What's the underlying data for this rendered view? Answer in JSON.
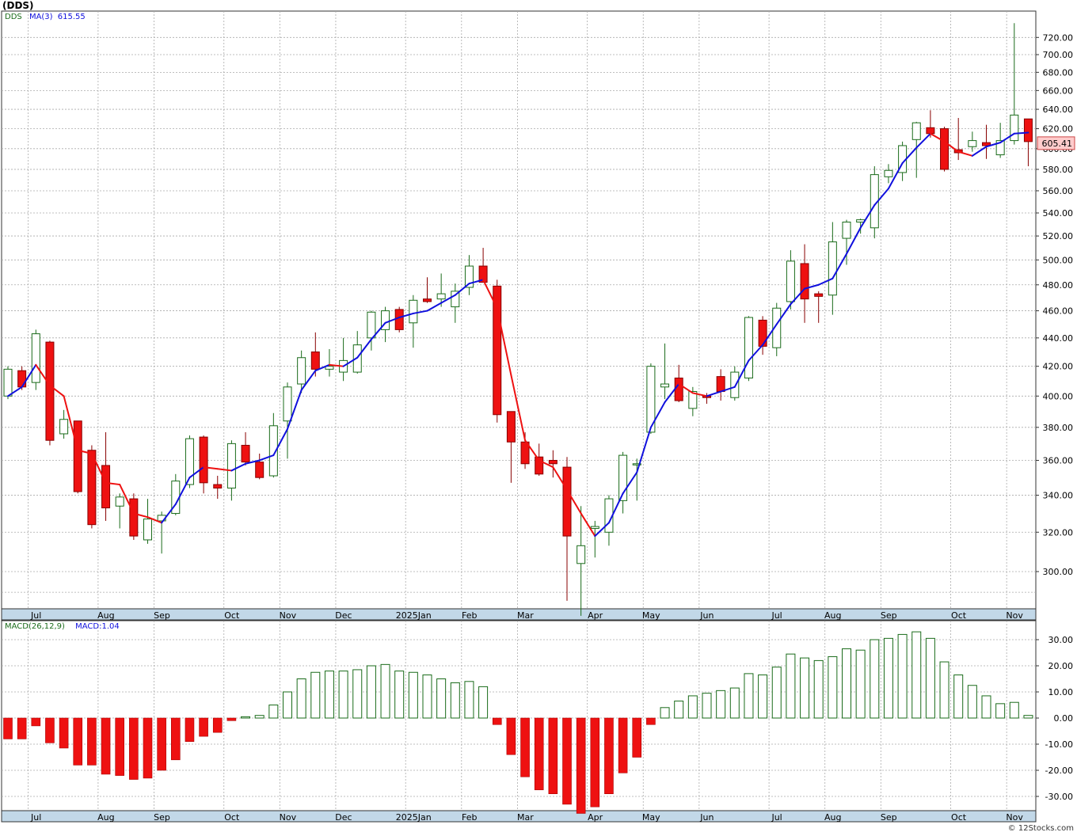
{
  "title": "(DDS)",
  "footer": "© 12Stocks.com",
  "colors": {
    "up_body": "#ffffff",
    "up_border": "#1a6b1a",
    "down_body": "#ee1111",
    "down_border": "#880000",
    "ma_up": "#1010dd",
    "ma_down": "#ee1111",
    "grid": "#aaaaaa",
    "axis_strip": "#c2d8e8",
    "macd_pos_border": "#1a6b1a",
    "macd_neg": "#ee1111",
    "price_tag_bg": "#ffcccc"
  },
  "price_legend": {
    "symbol": "DDS",
    "ma_label": "MA(3)",
    "ma_value": "615.55"
  },
  "macd_legend": {
    "label": "MACD(26,12,9)",
    "value_label": "MACD:1.04"
  },
  "price_tag": "605.41",
  "chart_data": [
    {
      "type": "candlestick",
      "frequency": "weekly",
      "y_ticks": [
        "300.00",
        "320.00",
        "340.00",
        "360.00",
        "380.00",
        "400.00",
        "420.00",
        "440.00",
        "460.00",
        "480.00",
        "500.00",
        "520.00",
        "540.00",
        "560.00",
        "580.00",
        "600.00",
        "620.00",
        "640.00",
        "660.00",
        "680.00",
        "700.00",
        "720.00"
      ],
      "y_tick_values": [
        300,
        320,
        340,
        360,
        380,
        400,
        420,
        440,
        460,
        480,
        500,
        520,
        540,
        560,
        580,
        600,
        620,
        640,
        660,
        680,
        700,
        720
      ],
      "y_scale": "log",
      "y_range": [
        280,
        740
      ],
      "grid": true,
      "months": [
        {
          "label": "Jul",
          "index": 1
        },
        {
          "label": "Aug",
          "index": 6
        },
        {
          "label": "Sep",
          "index": 10
        },
        {
          "label": "Oct",
          "index": 15
        },
        {
          "label": "Nov",
          "index": 19
        },
        {
          "label": "Dec",
          "index": 23
        },
        {
          "label": "2025Jan",
          "index": 28
        },
        {
          "label": "Feb",
          "index": 32
        },
        {
          "label": "Mar",
          "index": 36
        },
        {
          "label": "Apr",
          "index": 41
        },
        {
          "label": "May",
          "index": 45
        },
        {
          "label": "Jun",
          "index": 49
        },
        {
          "label": "Jul",
          "index": 54
        },
        {
          "label": "Aug",
          "index": 58
        },
        {
          "label": "Sep",
          "index": 62
        },
        {
          "label": "Oct",
          "index": 67
        },
        {
          "label": "Nov",
          "index": 71
        }
      ],
      "candles": [
        {
          "o": 400,
          "h": 420,
          "l": 398,
          "c": 418
        },
        {
          "o": 417,
          "h": 420,
          "l": 404,
          "c": 406
        },
        {
          "o": 409,
          "h": 446,
          "l": 404,
          "c": 443
        },
        {
          "o": 437,
          "h": 438,
          "l": 369,
          "c": 372
        },
        {
          "o": 376,
          "h": 391,
          "l": 373,
          "c": 385
        },
        {
          "o": 384,
          "h": 384,
          "l": 341,
          "c": 342
        },
        {
          "o": 366,
          "h": 369,
          "l": 322,
          "c": 324
        },
        {
          "o": 357,
          "h": 377,
          "l": 326,
          "c": 333
        },
        {
          "o": 334,
          "h": 341,
          "l": 322,
          "c": 339
        },
        {
          "o": 338,
          "h": 341,
          "l": 316,
          "c": 318
        },
        {
          "o": 316,
          "h": 338,
          "l": 314,
          "c": 327
        },
        {
          "o": 326,
          "h": 331,
          "l": 309,
          "c": 329
        },
        {
          "o": 330,
          "h": 352,
          "l": 329,
          "c": 348
        },
        {
          "o": 346,
          "h": 375,
          "l": 344,
          "c": 373
        },
        {
          "o": 374,
          "h": 375,
          "l": 341,
          "c": 347
        },
        {
          "o": 346,
          "h": 351,
          "l": 338,
          "c": 344
        },
        {
          "o": 344,
          "h": 372,
          "l": 337,
          "c": 370
        },
        {
          "o": 369,
          "h": 377,
          "l": 357,
          "c": 359
        },
        {
          "o": 359,
          "h": 364,
          "l": 349,
          "c": 350
        },
        {
          "o": 351,
          "h": 389,
          "l": 350,
          "c": 381
        },
        {
          "o": 384,
          "h": 409,
          "l": 361,
          "c": 406
        },
        {
          "o": 408,
          "h": 431,
          "l": 402,
          "c": 426
        },
        {
          "o": 430,
          "h": 444,
          "l": 413,
          "c": 418
        },
        {
          "o": 418,
          "h": 432,
          "l": 413,
          "c": 420
        },
        {
          "o": 416,
          "h": 440,
          "l": 410,
          "c": 424
        },
        {
          "o": 416,
          "h": 445,
          "l": 415,
          "c": 435
        },
        {
          "o": 440,
          "h": 460,
          "l": 431,
          "c": 459
        },
        {
          "o": 446,
          "h": 463,
          "l": 437,
          "c": 460
        },
        {
          "o": 461,
          "h": 463,
          "l": 444,
          "c": 446
        },
        {
          "o": 451,
          "h": 472,
          "l": 433,
          "c": 468
        },
        {
          "o": 469,
          "h": 486,
          "l": 466,
          "c": 467
        },
        {
          "o": 469,
          "h": 489,
          "l": 463,
          "c": 473
        },
        {
          "o": 463,
          "h": 481,
          "l": 451,
          "c": 475
        },
        {
          "o": 478,
          "h": 504,
          "l": 472,
          "c": 495
        },
        {
          "o": 495,
          "h": 510,
          "l": 482,
          "c": 482
        },
        {
          "o": 479,
          "h": 484,
          "l": 383,
          "c": 388
        },
        {
          "o": 390,
          "h": 390,
          "l": 347,
          "c": 371
        },
        {
          "o": 371,
          "h": 377,
          "l": 355,
          "c": 358
        },
        {
          "o": 362,
          "h": 370,
          "l": 351,
          "c": 352
        },
        {
          "o": 360,
          "h": 366,
          "l": 350,
          "c": 358
        },
        {
          "o": 356,
          "h": 362,
          "l": 286,
          "c": 318
        },
        {
          "o": 304,
          "h": 334,
          "l": 279,
          "c": 313
        },
        {
          "o": 322,
          "h": 326,
          "l": 307,
          "c": 323
        },
        {
          "o": 320,
          "h": 340,
          "l": 313,
          "c": 338
        },
        {
          "o": 337,
          "h": 365,
          "l": 330,
          "c": 363
        },
        {
          "o": 358,
          "h": 361,
          "l": 337,
          "c": 358
        },
        {
          "o": 377,
          "h": 422,
          "l": 376,
          "c": 420
        },
        {
          "o": 406,
          "h": 436,
          "l": 398,
          "c": 408
        },
        {
          "o": 412,
          "h": 421,
          "l": 396,
          "c": 397
        },
        {
          "o": 392,
          "h": 406,
          "l": 387,
          "c": 403
        },
        {
          "o": 400,
          "h": 402,
          "l": 395,
          "c": 399
        },
        {
          "o": 413,
          "h": 418,
          "l": 397,
          "c": 403
        },
        {
          "o": 399,
          "h": 420,
          "l": 397,
          "c": 416
        },
        {
          "o": 412,
          "h": 456,
          "l": 410,
          "c": 455
        },
        {
          "o": 453,
          "h": 456,
          "l": 428,
          "c": 434
        },
        {
          "o": 433,
          "h": 466,
          "l": 427,
          "c": 462
        },
        {
          "o": 467,
          "h": 508,
          "l": 461,
          "c": 499
        },
        {
          "o": 497,
          "h": 513,
          "l": 451,
          "c": 469
        },
        {
          "o": 473,
          "h": 475,
          "l": 451,
          "c": 471
        },
        {
          "o": 472,
          "h": 532,
          "l": 457,
          "c": 515
        },
        {
          "o": 518,
          "h": 534,
          "l": 496,
          "c": 532
        },
        {
          "o": 532,
          "h": 535,
          "l": 522,
          "c": 534
        },
        {
          "o": 527,
          "h": 583,
          "l": 518,
          "c": 575
        },
        {
          "o": 573,
          "h": 585,
          "l": 567,
          "c": 579
        },
        {
          "o": 577,
          "h": 607,
          "l": 569,
          "c": 603
        },
        {
          "o": 609,
          "h": 627,
          "l": 572,
          "c": 626
        },
        {
          "o": 621,
          "h": 639,
          "l": 611,
          "c": 615
        },
        {
          "o": 620,
          "h": 622,
          "l": 578,
          "c": 580
        },
        {
          "o": 599,
          "h": 631,
          "l": 589,
          "c": 596
        },
        {
          "o": 602,
          "h": 617,
          "l": 597,
          "c": 608
        },
        {
          "o": 606,
          "h": 624,
          "l": 590,
          "c": 603
        },
        {
          "o": 594,
          "h": 626,
          "l": 591,
          "c": 608
        },
        {
          "o": 608,
          "h": 737,
          "l": 604,
          "c": 634
        },
        {
          "o": 630,
          "h": 630,
          "l": 583,
          "c": 607
        }
      ],
      "ma3": [
        400,
        406,
        421,
        407,
        400,
        366,
        364,
        347,
        346,
        330,
        328,
        325,
        335,
        350,
        356,
        355,
        354,
        358,
        360,
        363,
        379,
        404,
        417,
        421,
        420,
        426,
        439,
        451,
        455,
        458,
        460,
        466,
        472,
        481,
        484,
        462,
        414,
        372,
        360,
        356,
        343,
        330,
        318,
        325,
        341,
        353,
        380,
        396,
        408,
        402,
        400,
        403,
        406,
        424,
        435,
        450,
        465,
        477,
        480,
        485,
        505,
        527,
        547,
        562,
        586,
        601,
        615,
        607,
        597,
        593,
        602,
        606,
        615,
        616
      ]
    },
    {
      "type": "bar",
      "name": "MACD(26,12,9)",
      "y_ticks": [
        "-30.00",
        "-20.00",
        "-10.00",
        "0.00",
        "10.00",
        "20.00",
        "30.00"
      ],
      "y_tick_values": [
        -30,
        -20,
        -10,
        0,
        10,
        20,
        30
      ],
      "y_range": [
        -36,
        34
      ],
      "values": [
        -8,
        -8,
        -3,
        -9.5,
        -11.5,
        -18,
        -18,
        -21.5,
        -22,
        -23.5,
        -23,
        -20,
        -16,
        -9,
        -7,
        -5.5,
        -1,
        0.5,
        1,
        5,
        10,
        15,
        17.5,
        18,
        18,
        18.5,
        20,
        20.5,
        18,
        17.5,
        16.5,
        15,
        13.5,
        14,
        12,
        -2.5,
        -14,
        -22.5,
        -27.5,
        -29,
        -33,
        -36.5,
        -34,
        -29,
        -21,
        -15,
        -2.5,
        4,
        6.5,
        8.5,
        9.5,
        10.5,
        11.5,
        17,
        16.5,
        19.5,
        24.5,
        23,
        22,
        23.5,
        26.5,
        26,
        30,
        30.5,
        32,
        33,
        30.5,
        21.5,
        16.5,
        12.5,
        8.5,
        5.5,
        6,
        1
      ]
    }
  ]
}
